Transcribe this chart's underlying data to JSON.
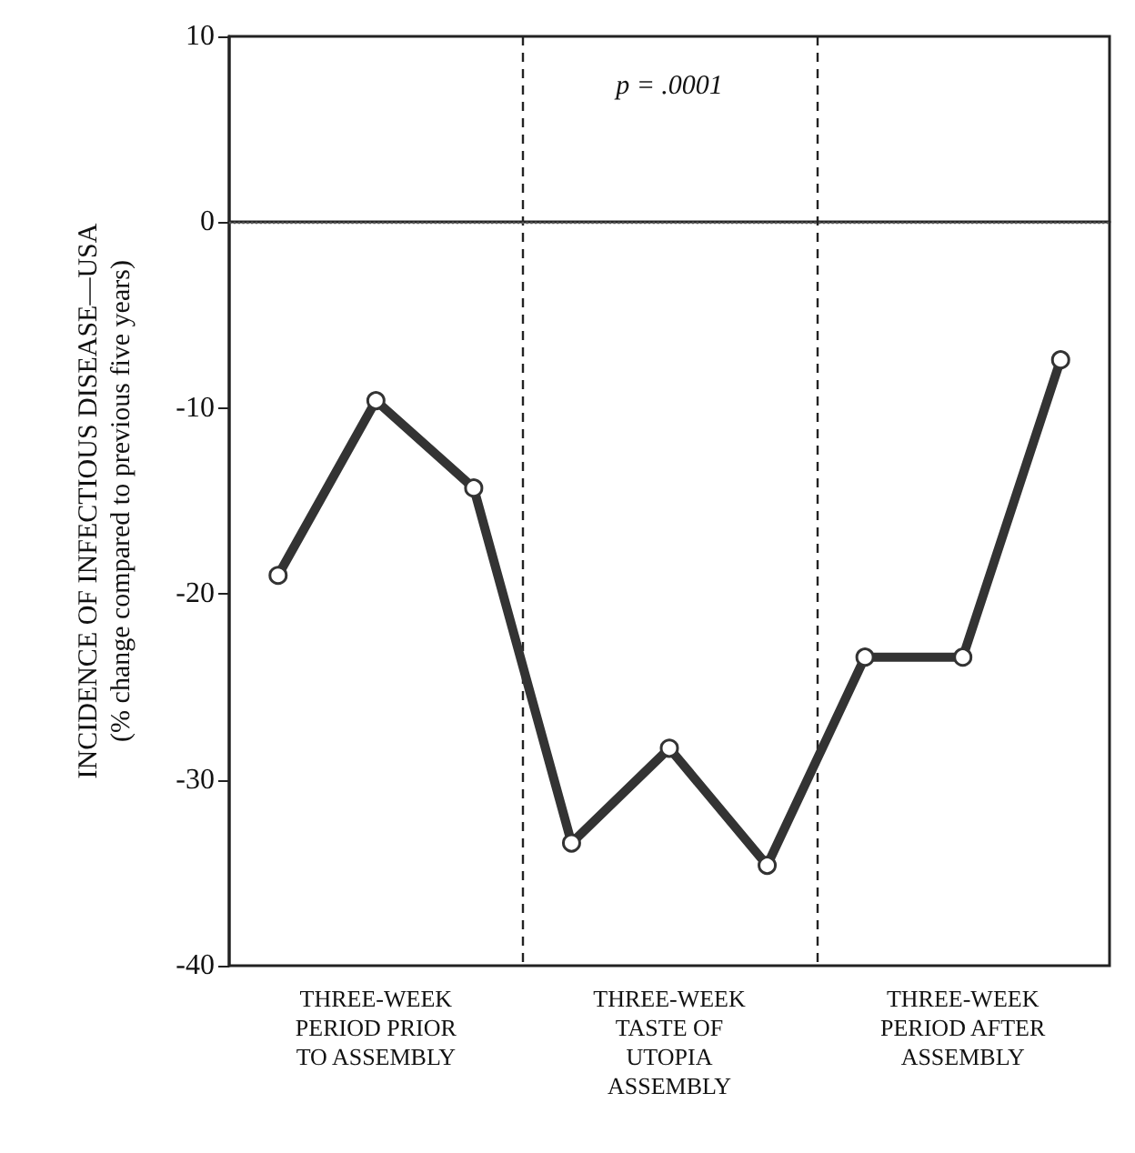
{
  "chart_data": {
    "type": "line",
    "ylabel": "INCIDENCE OF INFECTIOUS DISEASE—USA\n(% change compared to previous five years)",
    "categories": [
      null,
      "THREE-WEEK\nPERIOD PRIOR\nTO ASSEMBLY",
      null,
      null,
      "THREE-WEEK\nTASTE OF\nUTOPIA\nASSEMBLY",
      null,
      null,
      "THREE-WEEK\nPERIOD AFTER\nASSEMBLY",
      null
    ],
    "series": [
      {
        "color": "#333333",
        "values": [
          -19,
          -9.6,
          -14.3,
          -33.4,
          -28.3,
          -34.6,
          -23.4,
          -23.4,
          -7.4
        ]
      }
    ],
    "ylim": [
      -40,
      10
    ],
    "yticks": [
      -40,
      -30,
      -20,
      -10,
      0,
      10
    ],
    "grid": false,
    "marker": "circle",
    "line_style": "solid",
    "ref_lines": [
      {
        "axis": "y",
        "value": 0,
        "line_style": "dotted",
        "color": "#555555"
      }
    ],
    "annotations": [
      "p = .0001"
    ]
  }
}
